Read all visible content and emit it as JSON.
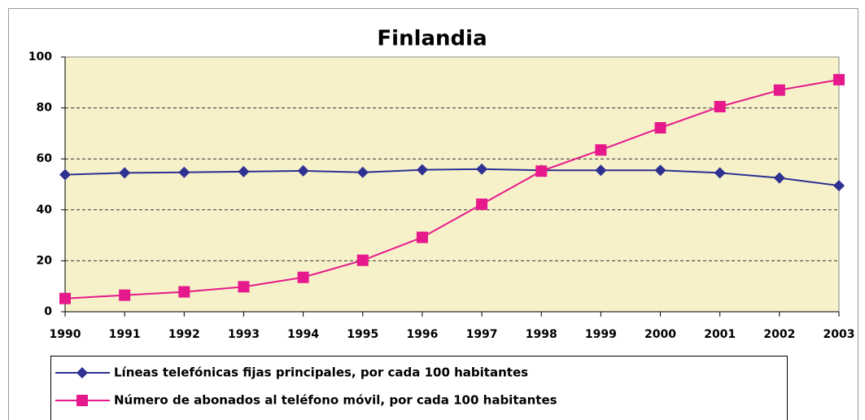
{
  "chart_data": {
    "type": "line",
    "title": "Finlandia",
    "x": [
      1990,
      1991,
      1992,
      1993,
      1994,
      1995,
      1996,
      1997,
      1998,
      1999,
      2000,
      2001,
      2002,
      2003
    ],
    "xlim": [
      1990,
      2003
    ],
    "xticks": [
      1990,
      1991,
      1992,
      1993,
      1994,
      1995,
      1996,
      1997,
      1998,
      1999,
      2000,
      2001,
      2002,
      2003
    ],
    "ylim": [
      0,
      100
    ],
    "yticks": [
      0,
      20,
      40,
      60,
      80,
      100
    ],
    "grid": true,
    "series": [
      {
        "name": "Líneas telefónicas fijas principales, por cada 100 habitantes",
        "color": "#2e3192",
        "marker": "diamond",
        "values": [
          53.8,
          54.5,
          54.7,
          55,
          55.3,
          54.7,
          55.7,
          56,
          55.5,
          55.5,
          55.5,
          54.5,
          52.5,
          49.5
        ]
      },
      {
        "name": "Número de abonados al teléfono móvil, por cada 100 habitantes",
        "color": "#e6198c",
        "marker": "square",
        "values": [
          5.2,
          6.5,
          7.8,
          9.8,
          13.5,
          20.2,
          29.2,
          42.2,
          55.2,
          63.5,
          72.2,
          80.5,
          87,
          91.1
        ]
      }
    ]
  }
}
